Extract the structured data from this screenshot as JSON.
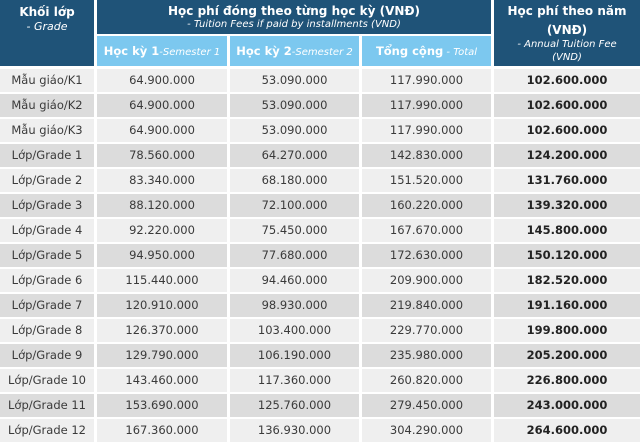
{
  "header": {
    "grade_title": "Khối lớp",
    "grade_subtitle": "- Grade",
    "installments_title": "Học phí đóng theo từng học kỳ (VNĐ)",
    "installments_subtitle": "- Tuition Fees if paid by installments (VND)",
    "annual_title_line1": "Học phí theo năm",
    "annual_title_line2": "(VNĐ)",
    "annual_subtitle_line1": "- Annual Tuition Fee",
    "annual_subtitle_line2": "(VND)",
    "sub_columns": [
      {
        "bold": "Học kỳ 1",
        "italic": "-Semester 1"
      },
      {
        "bold": "Học kỳ 2",
        "italic": "-Semester 2"
      },
      {
        "bold": "Tổng cộng",
        "italic": " - Total"
      }
    ]
  },
  "colors": {
    "header_dark": "#1f5378",
    "header_light": "#7cc8ef",
    "row_light": "#efefef",
    "row_dark": "#dcdcdc"
  },
  "rows": [
    {
      "grade": "Mẫu giáo/K1",
      "sem1": "64.900.000",
      "sem2": "53.090.000",
      "total": "117.990.000",
      "annual": "102.600.000"
    },
    {
      "grade": "Mẫu giáo/K2",
      "sem1": "64.900.000",
      "sem2": "53.090.000",
      "total": "117.990.000",
      "annual": "102.600.000"
    },
    {
      "grade": "Mẫu giáo/K3",
      "sem1": "64.900.000",
      "sem2": "53.090.000",
      "total": "117.990.000",
      "annual": "102.600.000"
    },
    {
      "grade": "Lớp/Grade 1",
      "sem1": "78.560.000",
      "sem2": "64.270.000",
      "total": "142.830.000",
      "annual": "124.200.000"
    },
    {
      "grade": "Lớp/Grade 2",
      "sem1": "83.340.000",
      "sem2": "68.180.000",
      "total": "151.520.000",
      "annual": "131.760.000"
    },
    {
      "grade": "Lớp/Grade 3",
      "sem1": "88.120.000",
      "sem2": "72.100.000",
      "total": "160.220.000",
      "annual": "139.320.000"
    },
    {
      "grade": "Lớp/Grade 4",
      "sem1": "92.220.000",
      "sem2": "75.450.000",
      "total": "167.670.000",
      "annual": "145.800.000"
    },
    {
      "grade": "Lớp/Grade 5",
      "sem1": "94.950.000",
      "sem2": "77.680.000",
      "total": "172.630.000",
      "annual": "150.120.000"
    },
    {
      "grade": "Lớp/Grade 6",
      "sem1": "115.440.000",
      "sem2": "94.460.000",
      "total": "209.900.000",
      "annual": "182.520.000"
    },
    {
      "grade": "Lớp/Grade 7",
      "sem1": "120.910.000",
      "sem2": "98.930.000",
      "total": "219.840.000",
      "annual": "191.160.000"
    },
    {
      "grade": "Lớp/Grade 8",
      "sem1": "126.370.000",
      "sem2": "103.400.000",
      "total": "229.770.000",
      "annual": "199.800.000"
    },
    {
      "grade": "Lớp/Grade 9",
      "sem1": "129.790.000",
      "sem2": "106.190.000",
      "total": "235.980.000",
      "annual": "205.200.000"
    },
    {
      "grade": "Lớp/Grade 10",
      "sem1": "143.460.000",
      "sem2": "117.360.000",
      "total": "260.820.000",
      "annual": "226.800.000"
    },
    {
      "grade": "Lớp/Grade 11",
      "sem1": "153.690.000",
      "sem2": "125.760.000",
      "total": "279.450.000",
      "annual": "243.000.000"
    },
    {
      "grade": "Lớp/Grade 12",
      "sem1": "167.360.000",
      "sem2": "136.930.000",
      "total": "304.290.000",
      "annual": "264.600.000"
    }
  ]
}
